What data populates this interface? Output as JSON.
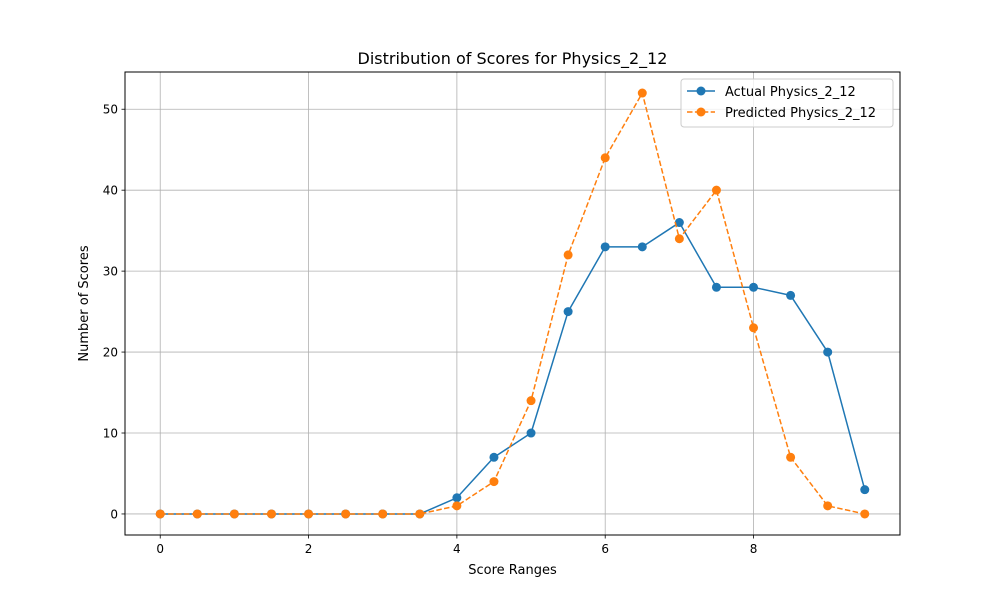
{
  "chart_data": {
    "type": "line",
    "title": "Distribution of Scores for Physics_2_12",
    "xlabel": "Score Ranges",
    "ylabel": "Number of Scores",
    "x": [
      0,
      0.5,
      1,
      1.5,
      2,
      2.5,
      3,
      3.5,
      4,
      4.5,
      5,
      5.5,
      6,
      6.5,
      7,
      7.5,
      8,
      8.5,
      9,
      9.5
    ],
    "xlim": [
      -0.475,
      9.975
    ],
    "ylim": [
      -2.6,
      54.6
    ],
    "xticks": [
      0,
      2,
      4,
      6,
      8
    ],
    "yticks": [
      0,
      10,
      20,
      30,
      40,
      50
    ],
    "grid": true,
    "legend_position": "top-right",
    "series": [
      {
        "name": "Actual Physics_2_12",
        "color": "#1f77b4",
        "line_style": "solid",
        "marker": "circle",
        "values": [
          0,
          0,
          0,
          0,
          0,
          0,
          0,
          0,
          2,
          7,
          10,
          25,
          33,
          33,
          36,
          28,
          28,
          27,
          20,
          3
        ]
      },
      {
        "name": "Predicted Physics_2_12",
        "color": "#ff7f0e",
        "line_style": "dashed",
        "marker": "circle",
        "values": [
          0,
          0,
          0,
          0,
          0,
          0,
          0,
          0,
          1,
          4,
          14,
          32,
          44,
          52,
          34,
          40,
          23,
          7,
          1,
          0
        ]
      }
    ]
  }
}
